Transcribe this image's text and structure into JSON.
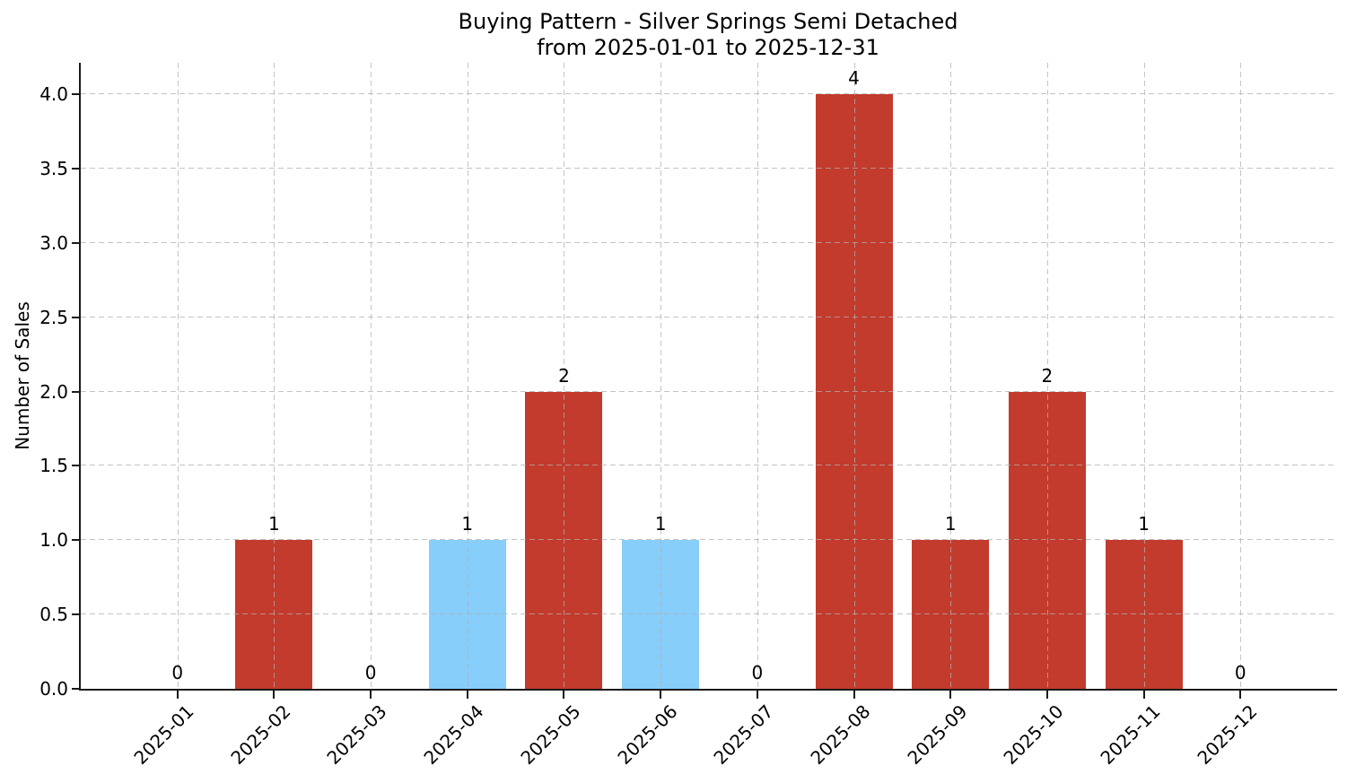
{
  "chart_data": {
    "type": "bar",
    "title": "Buying Pattern - Silver Springs Semi Detached",
    "subtitle": "from 2025-01-01 to 2025-12-31",
    "xlabel": "",
    "ylabel": "Number of Sales",
    "categories": [
      "2025-01",
      "2025-02",
      "2025-03",
      "2025-04",
      "2025-05",
      "2025-06",
      "2025-07",
      "2025-08",
      "2025-09",
      "2025-10",
      "2025-11",
      "2025-12"
    ],
    "values": [
      0,
      1,
      0,
      1,
      2,
      1,
      0,
      4,
      1,
      2,
      1,
      0
    ],
    "value_labels": [
      "0",
      "1",
      "0",
      "1",
      "2",
      "1",
      "0",
      "4",
      "1",
      "2",
      "1",
      "0"
    ],
    "bar_colors": [
      "#c23b2c",
      "#c23b2c",
      "#c23b2c",
      "#87cefa",
      "#c23b2c",
      "#87cefa",
      "#c23b2c",
      "#c23b2c",
      "#c23b2c",
      "#c23b2c",
      "#c23b2c",
      "#c23b2c"
    ],
    "yticks": [
      0.0,
      0.5,
      1.0,
      1.5,
      2.0,
      2.5,
      3.0,
      3.5,
      4.0
    ],
    "ytick_labels": [
      "0.0",
      "0.5",
      "1.0",
      "1.5",
      "2.0",
      "2.5",
      "3.0",
      "3.5",
      "4.0"
    ],
    "ylim": [
      0,
      4.21
    ],
    "grid": true,
    "grid_style": "dashed",
    "grid_over_bars": true,
    "legend": null,
    "colors": {
      "default_bar": "#c23b2c",
      "highlight_bar": "#87cefa",
      "grid": "#b0b0b0",
      "axis": "#1a1a1a",
      "background": "#ffffff",
      "text": "#000000"
    }
  }
}
